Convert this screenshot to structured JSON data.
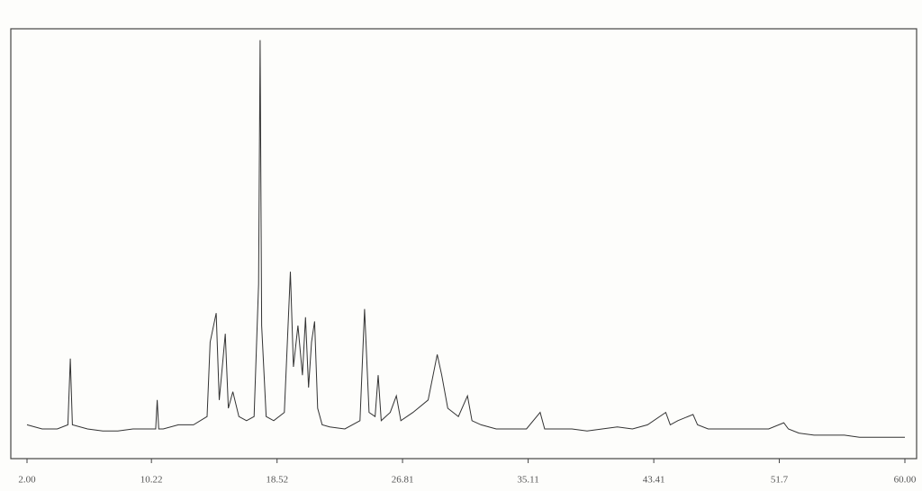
{
  "chart_data": {
    "type": "line",
    "x": [
      2,
      3,
      4,
      4.7,
      4.86,
      5.0,
      6,
      7,
      8,
      9,
      10,
      10.5,
      10.6,
      10.7,
      11,
      12,
      13,
      13.9,
      14.1,
      14.5,
      14.7,
      14.9,
      15.1,
      15.3,
      15.6,
      16,
      16.5,
      17.0,
      17.3,
      17.4,
      17.5,
      17.8,
      18.3,
      19.0,
      19.4,
      19.6,
      19.9,
      20.2,
      20.4,
      20.6,
      20.8,
      21.0,
      21.2,
      21.5,
      22,
      23,
      24.0,
      24.3,
      24.6,
      25.0,
      25.2,
      25.4,
      26.0,
      26.4,
      26.7,
      27.5,
      28.5,
      29.1,
      29.4,
      29.8,
      30.5,
      31.1,
      31.4,
      32,
      33,
      34,
      35,
      35.9,
      36.2,
      37,
      38,
      39,
      40,
      41,
      42,
      43,
      44.2,
      44.5,
      45,
      46,
      46.3,
      47,
      48,
      49,
      50,
      51,
      52,
      52.3,
      53,
      54,
      55,
      56,
      57,
      58,
      59,
      60
    ],
    "values": [
      6,
      5,
      5,
      6,
      22,
      6,
      5,
      4.5,
      4.5,
      5,
      5,
      5,
      12,
      5,
      5,
      6,
      6,
      8,
      26,
      33,
      12,
      20,
      28,
      10,
      14,
      8,
      7,
      8,
      40,
      99,
      30,
      8,
      7,
      9,
      43,
      20,
      30,
      18,
      32,
      15,
      26,
      31,
      10,
      6,
      5.5,
      5,
      7,
      34,
      9,
      8,
      18,
      7,
      9,
      13,
      7,
      9,
      12,
      23,
      18,
      10,
      8,
      13,
      7,
      6,
      5,
      5,
      5,
      9,
      5,
      5,
      5,
      4.5,
      5,
      5.5,
      5,
      6,
      9,
      6,
      7,
      8.5,
      6,
      5,
      5,
      5,
      5,
      5,
      6.5,
      5,
      4,
      3.5,
      3.5,
      3.5,
      3,
      3,
      3,
      3
    ],
    "color": "#333333",
    "xlim": [
      2,
      60
    ],
    "xticks": [
      {
        "value": 2,
        "label": "2.00"
      },
      10.22,
      18.52,
      26.81,
      35.11,
      43.41,
      51.7,
      {
        "value": 60,
        "label": "60.00"
      }
    ],
    "ylim": [
      0,
      100
    ]
  }
}
